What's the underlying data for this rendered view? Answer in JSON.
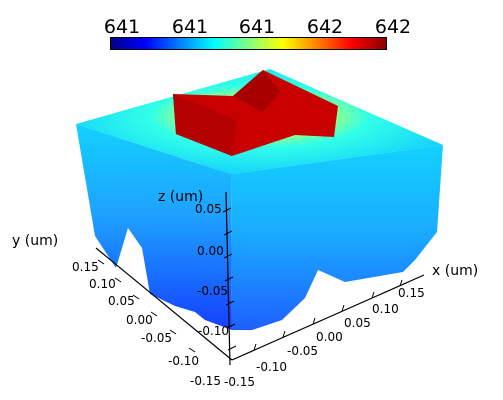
{
  "chart_data": {
    "type": "surface3d",
    "quantity_range": [
      641,
      642
    ],
    "colorbar": {
      "colormap": "jet",
      "tick_labels": [
        "641",
        "641",
        "641",
        "642",
        "642"
      ],
      "stops": [
        "#00008b",
        "#0000ff",
        "#0080ff",
        "#00ffff",
        "#7fff7f",
        "#ffff00",
        "#ff8000",
        "#ff0000",
        "#8b0000"
      ]
    },
    "axes": {
      "x": {
        "label": "x (um)",
        "range": [
          -0.15,
          0.15
        ],
        "ticks": [
          "-0.15",
          "-0.10",
          "-0.05",
          "0.00",
          "0.05",
          "0.10",
          "0.15"
        ]
      },
      "y": {
        "label": "y (um)",
        "range": [
          -0.15,
          0.15
        ],
        "ticks": [
          "0.15",
          "0.10",
          "0.05",
          "0.00",
          "-0.05",
          "-0.10",
          "-0.15"
        ]
      },
      "z": {
        "label": "z (um)",
        "range": [
          -0.1,
          0.05
        ],
        "ticks": [
          "0.05",
          "0.00",
          "-0.05",
          "-0.10"
        ]
      }
    },
    "field": {
      "description_colors": {
        "edge": "#00c8ff",
        "side_bottom": "#0040ff",
        "hot": "#b00000"
      }
    }
  }
}
